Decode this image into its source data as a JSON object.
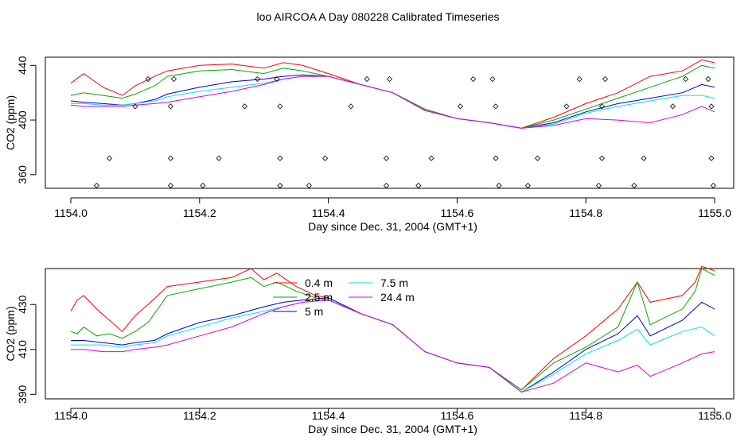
{
  "title": "loo AIRCOA A  Day 080228  Calibrated Timeseries",
  "chart_data": [
    {
      "type": "line+scatter",
      "xlabel": "Day since Dec. 31, 2004 (GMT+1)",
      "ylabel": "CO2 (ppm)",
      "xlim": [
        1154.0,
        1155.0
      ],
      "ylim": [
        350,
        446
      ],
      "xticks": [
        "1154.0",
        "1154.2",
        "1154.4",
        "1154.6",
        "1154.8",
        "1155.0"
      ],
      "yticks": [
        "360",
        "400",
        "440"
      ],
      "legend": "none",
      "grid": false,
      "series": [
        {
          "color": "#ff0000",
          "x": [
            1154.0,
            1154.02,
            1154.05,
            1154.08,
            1154.1,
            1154.13,
            1154.15,
            1154.2,
            1154.25,
            1154.3,
            1154.33,
            1154.36,
            1154.4,
            1154.45,
            1154.5,
            1154.55,
            1154.6,
            1154.65,
            1154.7,
            1154.75,
            1154.8,
            1154.85,
            1154.9,
            1154.95,
            1154.98,
            1155.0
          ],
          "values": [
            427,
            434,
            424,
            418,
            425,
            432,
            436,
            440,
            441,
            438,
            442,
            440,
            434,
            426,
            420,
            408,
            401,
            398,
            394,
            402,
            412,
            420,
            432,
            436,
            444,
            442
          ]
        },
        {
          "color": "#00aa00",
          "x": [
            1154.0,
            1154.02,
            1154.05,
            1154.08,
            1154.1,
            1154.13,
            1154.15,
            1154.2,
            1154.25,
            1154.3,
            1154.33,
            1154.36,
            1154.4,
            1154.45,
            1154.5,
            1154.55,
            1154.6,
            1154.65,
            1154.7,
            1154.75,
            1154.8,
            1154.85,
            1154.9,
            1154.95,
            1154.98,
            1155.0
          ],
          "values": [
            418,
            420,
            418,
            416,
            419,
            425,
            432,
            436,
            437,
            434,
            438,
            436,
            432,
            426,
            420,
            408,
            401,
            398,
            394,
            400,
            408,
            416,
            424,
            432,
            440,
            438
          ]
        },
        {
          "color": "#0000cc",
          "x": [
            1154.0,
            1154.02,
            1154.05,
            1154.08,
            1154.1,
            1154.13,
            1154.15,
            1154.2,
            1154.25,
            1154.3,
            1154.33,
            1154.36,
            1154.4,
            1154.45,
            1154.5,
            1154.55,
            1154.6,
            1154.65,
            1154.7,
            1154.75,
            1154.8,
            1154.85,
            1154.9,
            1154.95,
            1154.98,
            1155.0
          ],
          "values": [
            414,
            413,
            412,
            411,
            412,
            415,
            419,
            424,
            428,
            430,
            432,
            433,
            432,
            426,
            420,
            407,
            401,
            398,
            394,
            398,
            406,
            412,
            416,
            420,
            426,
            424
          ]
        },
        {
          "color": "#00e5e5",
          "x": [
            1154.0,
            1154.02,
            1154.05,
            1154.08,
            1154.1,
            1154.13,
            1154.15,
            1154.2,
            1154.25,
            1154.3,
            1154.33,
            1154.36,
            1154.4,
            1154.45,
            1154.5,
            1154.55,
            1154.6,
            1154.65,
            1154.7,
            1154.75,
            1154.8,
            1154.85,
            1154.9,
            1154.95,
            1154.98,
            1155.0
          ],
          "values": [
            412,
            412,
            411,
            411,
            412,
            414,
            417,
            421,
            424,
            427,
            430,
            432,
            432,
            426,
            420,
            407,
            401,
            398,
            394,
            397,
            405,
            410,
            414,
            418,
            418,
            416
          ]
        },
        {
          "color": "#dd00dd",
          "x": [
            1154.0,
            1154.02,
            1154.05,
            1154.08,
            1154.1,
            1154.13,
            1154.15,
            1154.2,
            1154.25,
            1154.3,
            1154.33,
            1154.36,
            1154.4,
            1154.45,
            1154.5,
            1154.55,
            1154.6,
            1154.65,
            1154.7,
            1154.75,
            1154.8,
            1154.85,
            1154.9,
            1154.95,
            1154.98,
            1155.0
          ],
          "values": [
            411,
            410,
            410,
            410,
            411,
            412,
            413,
            417,
            421,
            426,
            430,
            432,
            432,
            426,
            420,
            407,
            401,
            398,
            394,
            396,
            401,
            400,
            398,
            404,
            410,
            406
          ]
        }
      ],
      "scatter_points": [
        [
          1154.04,
          352
        ],
        [
          1154.06,
          372
        ],
        [
          1154.1,
          410
        ],
        [
          1154.12,
          430
        ],
        [
          1154.155,
          352
        ],
        [
          1154.155,
          372
        ],
        [
          1154.155,
          410
        ],
        [
          1154.16,
          430
        ],
        [
          1154.205,
          352
        ],
        [
          1154.23,
          372
        ],
        [
          1154.27,
          410
        ],
        [
          1154.29,
          430
        ],
        [
          1154.32,
          430
        ],
        [
          1154.325,
          352
        ],
        [
          1154.325,
          372
        ],
        [
          1154.325,
          410
        ],
        [
          1154.37,
          352
        ],
        [
          1154.395,
          372
        ],
        [
          1154.435,
          410
        ],
        [
          1154.46,
          430
        ],
        [
          1154.49,
          352
        ],
        [
          1154.49,
          372
        ],
        [
          1154.495,
          430
        ],
        [
          1154.54,
          352
        ],
        [
          1154.56,
          372
        ],
        [
          1154.605,
          410
        ],
        [
          1154.625,
          430
        ],
        [
          1154.655,
          430
        ],
        [
          1154.66,
          372
        ],
        [
          1154.66,
          410
        ],
        [
          1154.665,
          352
        ],
        [
          1154.71,
          352
        ],
        [
          1154.725,
          372
        ],
        [
          1154.77,
          410
        ],
        [
          1154.79,
          430
        ],
        [
          1154.82,
          352
        ],
        [
          1154.825,
          372
        ],
        [
          1154.825,
          410
        ],
        [
          1154.83,
          430
        ],
        [
          1154.875,
          352
        ],
        [
          1154.89,
          372
        ],
        [
          1154.935,
          410
        ],
        [
          1154.955,
          430
        ],
        [
          1154.99,
          430
        ],
        [
          1154.995,
          372
        ],
        [
          1154.995,
          410
        ],
        [
          1154.998,
          352
        ]
      ]
    },
    {
      "type": "line",
      "xlabel": "Day since Dec. 31, 2004 (GMT+1)",
      "ylabel": "CO2 (ppm)",
      "xlim": [
        1154.0,
        1155.0
      ],
      "ylim": [
        388,
        446
      ],
      "xticks": [
        "1154.0",
        "1154.2",
        "1154.4",
        "1154.6",
        "1154.8",
        "1155.0"
      ],
      "yticks": [
        "390",
        "410",
        "430"
      ],
      "legend": "top-left",
      "grid": false,
      "series": [
        {
          "name": "0.4 m",
          "color": "#ff0000",
          "x": [
            1154.0,
            1154.01,
            1154.02,
            1154.04,
            1154.06,
            1154.08,
            1154.1,
            1154.12,
            1154.15,
            1154.2,
            1154.25,
            1154.28,
            1154.3,
            1154.32,
            1154.35,
            1154.38,
            1154.4,
            1154.45,
            1154.5,
            1154.55,
            1154.6,
            1154.65,
            1154.7,
            1154.75,
            1154.8,
            1154.85,
            1154.88,
            1154.9,
            1154.95,
            1154.97,
            1154.98,
            1155.0
          ],
          "values": [
            427,
            432,
            434,
            428,
            423,
            418,
            425,
            430,
            438,
            440,
            442,
            446,
            441,
            444,
            438,
            434,
            433,
            426,
            421,
            409,
            404,
            402,
            392,
            406,
            416,
            428,
            440,
            431,
            434,
            440,
            447,
            445
          ]
        },
        {
          "name": "2.5 m",
          "color": "#00aa00",
          "x": [
            1154.0,
            1154.01,
            1154.02,
            1154.04,
            1154.06,
            1154.08,
            1154.1,
            1154.12,
            1154.15,
            1154.2,
            1154.25,
            1154.28,
            1154.3,
            1154.32,
            1154.35,
            1154.38,
            1154.4,
            1154.45,
            1154.5,
            1154.55,
            1154.6,
            1154.65,
            1154.7,
            1154.75,
            1154.8,
            1154.85,
            1154.88,
            1154.9,
            1154.95,
            1154.97,
            1154.98,
            1155.0
          ],
          "values": [
            418,
            417,
            420,
            416,
            417,
            415,
            418,
            422,
            434,
            437,
            440,
            442,
            438,
            440,
            436,
            433,
            432,
            426,
            421,
            409,
            404,
            402,
            392,
            404,
            411,
            420,
            440,
            421,
            428,
            436,
            446,
            443
          ]
        },
        {
          "name": "5 m",
          "color": "#0000cc",
          "x": [
            1154.0,
            1154.02,
            1154.05,
            1154.08,
            1154.1,
            1154.13,
            1154.15,
            1154.2,
            1154.25,
            1154.3,
            1154.33,
            1154.36,
            1154.4,
            1154.45,
            1154.5,
            1154.55,
            1154.6,
            1154.65,
            1154.7,
            1154.75,
            1154.8,
            1154.85,
            1154.88,
            1154.9,
            1154.95,
            1154.98,
            1155.0
          ],
          "values": [
            414,
            414,
            413,
            412,
            413,
            414,
            417,
            422,
            425,
            429,
            431,
            432,
            433,
            426,
            421,
            409,
            404,
            402,
            391,
            400,
            410,
            417,
            425,
            416,
            423,
            431,
            428
          ]
        },
        {
          "name": "7.5 m",
          "color": "#00e5e5",
          "x": [
            1154.0,
            1154.02,
            1154.05,
            1154.08,
            1154.1,
            1154.13,
            1154.15,
            1154.2,
            1154.25,
            1154.3,
            1154.33,
            1154.36,
            1154.4,
            1154.45,
            1154.5,
            1154.55,
            1154.6,
            1154.65,
            1154.7,
            1154.75,
            1154.8,
            1154.85,
            1154.88,
            1154.9,
            1154.95,
            1154.98,
            1155.0
          ],
          "values": [
            412,
            412,
            412,
            411,
            412,
            413,
            416,
            420,
            424,
            427,
            429,
            431,
            432,
            426,
            421,
            409,
            404,
            402,
            391,
            399,
            408,
            414,
            419,
            412,
            418,
            420,
            416
          ]
        },
        {
          "name": "24.4 m",
          "color": "#dd00dd",
          "x": [
            1154.0,
            1154.02,
            1154.05,
            1154.08,
            1154.1,
            1154.13,
            1154.15,
            1154.2,
            1154.25,
            1154.3,
            1154.33,
            1154.36,
            1154.4,
            1154.45,
            1154.5,
            1154.55,
            1154.6,
            1154.65,
            1154.7,
            1154.75,
            1154.8,
            1154.85,
            1154.88,
            1154.9,
            1154.95,
            1154.98,
            1155.0
          ],
          "values": [
            410,
            410,
            409,
            409,
            410,
            411,
            412,
            416,
            420,
            426,
            429,
            431,
            432,
            426,
            421,
            409,
            404,
            402,
            391,
            395,
            404,
            400,
            403,
            398,
            404,
            408,
            409
          ]
        }
      ]
    }
  ]
}
